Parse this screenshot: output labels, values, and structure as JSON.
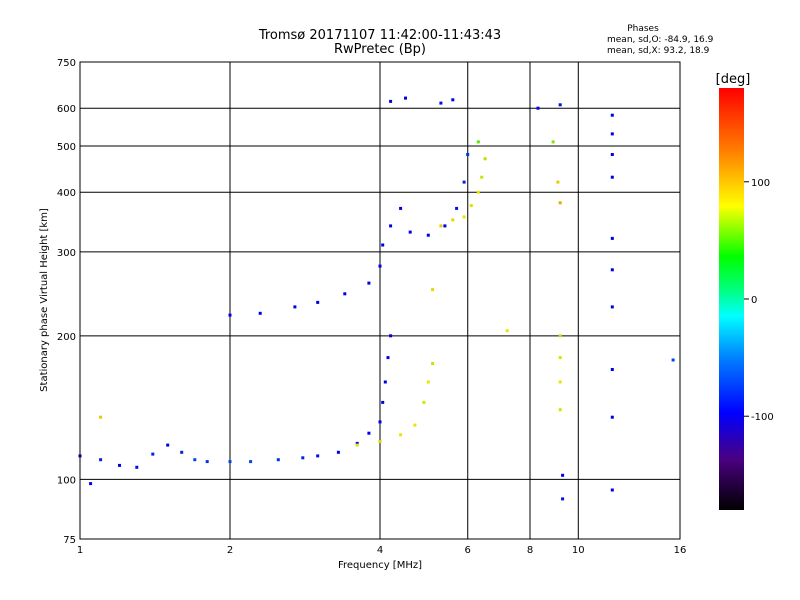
{
  "chart_data": {
    "type": "scatter",
    "title": "Tromsø 20171107 11:42:00-11:43:43",
    "subtitle": "RwPretec (Bp)",
    "xlabel": "Frequency [MHz]",
    "ylabel": "Stationary phase Virtual Height [km]",
    "x_scale": "log",
    "y_scale": "log",
    "xlim": [
      1,
      16
    ],
    "ylim": [
      75,
      750
    ],
    "x_ticks": [
      1,
      2,
      4,
      6,
      8,
      10,
      16
    ],
    "x_tick_labels": [
      "1",
      "2",
      "4",
      "6",
      "8",
      "10",
      "16"
    ],
    "y_ticks": [
      75,
      100,
      200,
      300,
      400,
      500,
      600,
      750
    ],
    "y_tick_labels": [
      "75",
      "100",
      "200",
      "300",
      "400",
      "500",
      "600",
      "750"
    ],
    "grid": true,
    "phase_box": {
      "heading": "Phases",
      "line_o": "mean, sd,O: -84.9, 16.9",
      "line_x": "mean, sd,X:  93.2, 18.9"
    },
    "colorbar": {
      "label": "[deg]",
      "range": [
        -180,
        180
      ],
      "tick_values": [
        100,
        0,
        -100
      ],
      "tick_labels": [
        "100",
        "0",
        "-100"
      ]
    },
    "series": [
      {
        "name": "O",
        "points": [
          [
            1.0,
            112,
            -110
          ],
          [
            1.05,
            98,
            -100
          ],
          [
            1.1,
            110,
            -90
          ],
          [
            1.2,
            107,
            -100
          ],
          [
            1.3,
            106,
            -95
          ],
          [
            1.4,
            113,
            -90
          ],
          [
            1.5,
            118,
            -100
          ],
          [
            1.6,
            114,
            -90
          ],
          [
            1.7,
            110,
            -80
          ],
          [
            1.8,
            109,
            -85
          ],
          [
            2.0,
            109,
            -80
          ],
          [
            2.2,
            109,
            -80
          ],
          [
            2.5,
            110,
            -85
          ],
          [
            2.8,
            111,
            -90
          ],
          [
            3.0,
            112,
            -95
          ],
          [
            3.3,
            114,
            -100
          ],
          [
            3.6,
            119,
            -100
          ],
          [
            3.8,
            125,
            -105
          ],
          [
            4.0,
            132,
            -105
          ],
          [
            4.05,
            145,
            -110
          ],
          [
            4.1,
            160,
            -110
          ],
          [
            4.15,
            180,
            -110
          ],
          [
            4.2,
            200,
            -115
          ],
          [
            2.0,
            221,
            -110
          ],
          [
            2.3,
            223,
            -105
          ],
          [
            2.7,
            230,
            -100
          ],
          [
            3.0,
            235,
            -105
          ],
          [
            3.4,
            245,
            -110
          ],
          [
            3.8,
            258,
            -115
          ],
          [
            4.0,
            280,
            -120
          ],
          [
            4.05,
            310,
            -110
          ],
          [
            4.2,
            340,
            -110
          ],
          [
            4.4,
            370,
            -100
          ],
          [
            4.6,
            330,
            -105
          ],
          [
            5.0,
            325,
            -100
          ],
          [
            5.4,
            340,
            -100
          ],
          [
            5.7,
            370,
            -95
          ],
          [
            5.9,
            420,
            -90
          ],
          [
            6.0,
            480,
            -85
          ],
          [
            4.2,
            620,
            -100
          ],
          [
            4.5,
            630,
            -100
          ],
          [
            5.3,
            615,
            -95
          ],
          [
            5.6,
            625,
            -100
          ],
          [
            8.3,
            600,
            -100
          ],
          [
            9.2,
            610,
            -95
          ],
          [
            11.7,
            580,
            -100
          ],
          [
            11.7,
            530,
            -110
          ],
          [
            11.7,
            480,
            -115
          ],
          [
            11.7,
            430,
            -120
          ],
          [
            11.7,
            320,
            -115
          ],
          [
            11.7,
            275,
            -120
          ],
          [
            11.7,
            230,
            -115
          ],
          [
            11.7,
            170,
            -110
          ],
          [
            11.7,
            135,
            -115
          ],
          [
            11.7,
            95,
            -120
          ],
          [
            9.3,
            102,
            -100
          ],
          [
            9.3,
            91,
            -95
          ],
          [
            15.5,
            178,
            -80
          ]
        ]
      },
      {
        "name": "X",
        "points": [
          [
            3.6,
            118,
            100
          ],
          [
            4.0,
            120,
            105
          ],
          [
            4.4,
            124,
            100
          ],
          [
            4.7,
            130,
            100
          ],
          [
            4.9,
            145,
            95
          ],
          [
            5.0,
            160,
            100
          ],
          [
            5.1,
            175,
            90
          ],
          [
            5.3,
            340,
            110
          ],
          [
            5.6,
            350,
            105
          ],
          [
            5.9,
            355,
            100
          ],
          [
            6.1,
            375,
            95
          ],
          [
            6.3,
            400,
            100
          ],
          [
            6.4,
            430,
            90
          ],
          [
            6.5,
            470,
            85
          ],
          [
            6.3,
            510,
            60
          ],
          [
            9.2,
            200,
            90
          ],
          [
            9.2,
            180,
            95
          ],
          [
            9.2,
            160,
            100
          ],
          [
            9.2,
            140,
            95
          ],
          [
            9.2,
            380,
            120
          ],
          [
            9.1,
            420,
            110
          ],
          [
            8.9,
            510,
            70
          ],
          [
            7.2,
            205,
            100
          ],
          [
            5.1,
            250,
            105
          ],
          [
            1.1,
            135,
            110
          ]
        ]
      }
    ]
  }
}
